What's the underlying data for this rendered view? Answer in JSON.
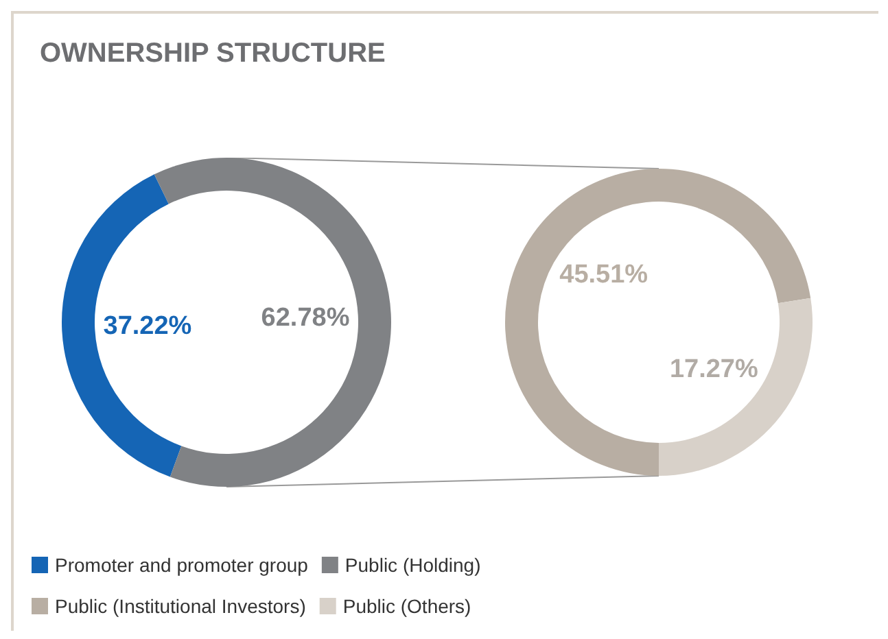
{
  "chart_data": [
    {
      "type": "donut",
      "title": "OWNERSHIP STRUCTURE",
      "categories": [
        "Promoter and promoter group",
        "Public (Holding)"
      ],
      "values": [
        37.22,
        62.78
      ],
      "colors": [
        "#1565b5",
        "#808285"
      ],
      "value_labels": [
        "37.22%",
        "62.78%"
      ],
      "legend": "bottom"
    },
    {
      "type": "donut",
      "categories": [
        "Public (Institutional Investors)",
        "Public (Others)"
      ],
      "values": [
        45.51,
        17.27
      ],
      "colors": [
        "#b8aea3",
        "#d8d1c9"
      ],
      "value_labels": [
        "45.51%",
        "17.27%"
      ],
      "legend": "bottom"
    }
  ]
}
